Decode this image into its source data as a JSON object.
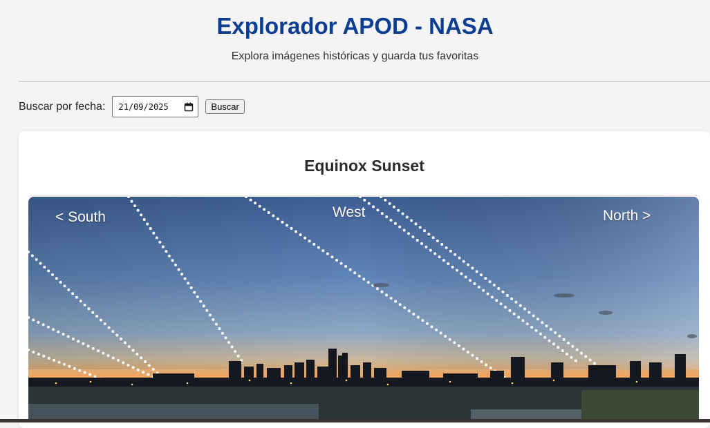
{
  "header": {
    "title": "Explorador APOD - NASA",
    "subtitle": "Explora imágenes históricas y guarda tus favoritas"
  },
  "search": {
    "label": "Buscar por fecha:",
    "date_value": "21/09/2025",
    "button_label": "Buscar"
  },
  "apod": {
    "title": "Equinox Sunset",
    "image_labels": {
      "south": "< South",
      "west": "West",
      "north": "North >"
    }
  },
  "colors": {
    "title": "#0b3d91",
    "background": "#f4f4f4",
    "card": "#ffffff"
  },
  "icons": {
    "date_picker": "calendar-icon"
  }
}
